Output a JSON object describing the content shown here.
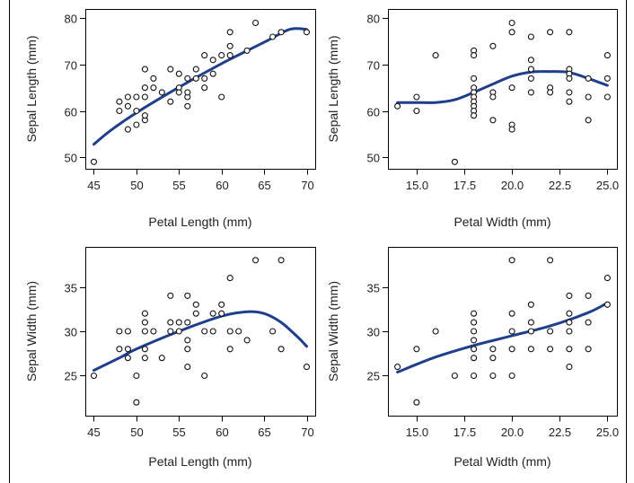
{
  "chart_data": [
    {
      "type": "scatter",
      "xlabel": "Petal Length (mm)",
      "ylabel": "Sepal Length (mm)",
      "xlim": [
        44,
        71
      ],
      "ylim": [
        47.5,
        82
      ],
      "xticks": [
        45,
        50,
        55,
        60,
        65,
        70
      ],
      "xtick_labels": [
        "45",
        "50",
        "55",
        "60",
        "65",
        "70"
      ],
      "yticks": [
        50,
        60,
        70,
        80
      ],
      "ytick_labels": [
        "50",
        "60",
        "70",
        "80"
      ],
      "grid": false,
      "fit_color": "#1f3f8a",
      "points": [
        {
          "x": 45,
          "y": 49
        },
        {
          "x": 48,
          "y": 62
        },
        {
          "x": 48,
          "y": 60
        },
        {
          "x": 49,
          "y": 63
        },
        {
          "x": 49,
          "y": 61
        },
        {
          "x": 49,
          "y": 56
        },
        {
          "x": 50,
          "y": 63
        },
        {
          "x": 50,
          "y": 60
        },
        {
          "x": 50,
          "y": 57
        },
        {
          "x": 51,
          "y": 58
        },
        {
          "x": 51,
          "y": 63
        },
        {
          "x": 51,
          "y": 65
        },
        {
          "x": 51,
          "y": 59
        },
        {
          "x": 51,
          "y": 69
        },
        {
          "x": 52,
          "y": 65
        },
        {
          "x": 52,
          "y": 67
        },
        {
          "x": 53,
          "y": 64
        },
        {
          "x": 54,
          "y": 69
        },
        {
          "x": 54,
          "y": 62
        },
        {
          "x": 55,
          "y": 65
        },
        {
          "x": 55,
          "y": 64
        },
        {
          "x": 55,
          "y": 68
        },
        {
          "x": 56,
          "y": 63
        },
        {
          "x": 56,
          "y": 64
        },
        {
          "x": 56,
          "y": 61
        },
        {
          "x": 56,
          "y": 67
        },
        {
          "x": 57,
          "y": 67
        },
        {
          "x": 57,
          "y": 69
        },
        {
          "x": 58,
          "y": 67
        },
        {
          "x": 58,
          "y": 65
        },
        {
          "x": 58,
          "y": 72
        },
        {
          "x": 59,
          "y": 68
        },
        {
          "x": 59,
          "y": 71
        },
        {
          "x": 60,
          "y": 63
        },
        {
          "x": 60,
          "y": 72
        },
        {
          "x": 61,
          "y": 72
        },
        {
          "x": 61,
          "y": 74
        },
        {
          "x": 61,
          "y": 77
        },
        {
          "x": 63,
          "y": 73
        },
        {
          "x": 64,
          "y": 79
        },
        {
          "x": 66,
          "y": 76
        },
        {
          "x": 67,
          "y": 77
        },
        {
          "x": 70,
          "y": 77
        }
      ],
      "fit": [
        {
          "x": 45,
          "y": 52.8
        },
        {
          "x": 47,
          "y": 55.8
        },
        {
          "x": 50,
          "y": 59.6
        },
        {
          "x": 55,
          "y": 65.1
        },
        {
          "x": 60,
          "y": 70.2
        },
        {
          "x": 65,
          "y": 74.8
        },
        {
          "x": 68,
          "y": 77.6
        },
        {
          "x": 70,
          "y": 77.6
        }
      ]
    },
    {
      "type": "scatter",
      "xlabel": "Petal Width (mm)",
      "ylabel": "Sepal Length (mm)",
      "xlim": [
        13.5,
        25.5
      ],
      "ylim": [
        47.5,
        82
      ],
      "xticks": [
        15,
        17.5,
        20,
        22.5,
        25
      ],
      "xtick_labels": [
        "15.0",
        "17.5",
        "20.0",
        "22.5",
        "25.0"
      ],
      "yticks": [
        50,
        60,
        70,
        80
      ],
      "ytick_labels": [
        "50",
        "60",
        "70",
        "80"
      ],
      "grid": false,
      "fit_color": "#1f3f8a",
      "points": [
        {
          "x": 14,
          "y": 61
        },
        {
          "x": 15,
          "y": 63
        },
        {
          "x": 15,
          "y": 60
        },
        {
          "x": 16,
          "y": 72
        },
        {
          "x": 17,
          "y": 49
        },
        {
          "x": 18,
          "y": 73
        },
        {
          "x": 18,
          "y": 72
        },
        {
          "x": 18,
          "y": 67
        },
        {
          "x": 18,
          "y": 65
        },
        {
          "x": 18,
          "y": 64
        },
        {
          "x": 18,
          "y": 63
        },
        {
          "x": 18,
          "y": 62
        },
        {
          "x": 18,
          "y": 61
        },
        {
          "x": 18,
          "y": 60
        },
        {
          "x": 18,
          "y": 59
        },
        {
          "x": 19,
          "y": 74
        },
        {
          "x": 19,
          "y": 64
        },
        {
          "x": 19,
          "y": 63
        },
        {
          "x": 19,
          "y": 58
        },
        {
          "x": 20,
          "y": 79
        },
        {
          "x": 20,
          "y": 77
        },
        {
          "x": 20,
          "y": 65
        },
        {
          "x": 20,
          "y": 57
        },
        {
          "x": 20,
          "y": 56
        },
        {
          "x": 21,
          "y": 76
        },
        {
          "x": 21,
          "y": 71
        },
        {
          "x": 21,
          "y": 69
        },
        {
          "x": 21,
          "y": 67
        },
        {
          "x": 21,
          "y": 64
        },
        {
          "x": 22,
          "y": 77
        },
        {
          "x": 22,
          "y": 65
        },
        {
          "x": 22,
          "y": 64
        },
        {
          "x": 23,
          "y": 77
        },
        {
          "x": 23,
          "y": 69
        },
        {
          "x": 23,
          "y": 68
        },
        {
          "x": 23,
          "y": 67
        },
        {
          "x": 23,
          "y": 64
        },
        {
          "x": 23,
          "y": 62
        },
        {
          "x": 24,
          "y": 67
        },
        {
          "x": 24,
          "y": 63
        },
        {
          "x": 24,
          "y": 58
        },
        {
          "x": 25,
          "y": 72
        },
        {
          "x": 25,
          "y": 67
        },
        {
          "x": 25,
          "y": 63
        }
      ],
      "fit": [
        {
          "x": 14,
          "y": 61.8
        },
        {
          "x": 15,
          "y": 61.8
        },
        {
          "x": 16,
          "y": 61.8
        },
        {
          "x": 17,
          "y": 62.4
        },
        {
          "x": 18,
          "y": 64.0
        },
        {
          "x": 19,
          "y": 65.8
        },
        {
          "x": 20,
          "y": 67.5
        },
        {
          "x": 21,
          "y": 68.4
        },
        {
          "x": 22,
          "y": 68.5
        },
        {
          "x": 23,
          "y": 68.3
        },
        {
          "x": 24,
          "y": 67.0
        },
        {
          "x": 25,
          "y": 65.5
        }
      ]
    },
    {
      "type": "scatter",
      "xlabel": "Petal Length (mm)",
      "ylabel": "Sepal Width (mm)",
      "xlim": [
        44,
        71
      ],
      "ylim": [
        20.5,
        39.5
      ],
      "xticks": [
        45,
        50,
        55,
        60,
        65,
        70
      ],
      "xtick_labels": [
        "45",
        "50",
        "55",
        "60",
        "65",
        "70"
      ],
      "yticks": [
        25,
        30,
        35
      ],
      "ytick_labels": [
        "25",
        "30",
        "35"
      ],
      "grid": false,
      "fit_color": "#1f3f8a",
      "points": [
        {
          "x": 45,
          "y": 25
        },
        {
          "x": 48,
          "y": 30
        },
        {
          "x": 48,
          "y": 28
        },
        {
          "x": 49,
          "y": 30
        },
        {
          "x": 49,
          "y": 28
        },
        {
          "x": 49,
          "y": 27
        },
        {
          "x": 50,
          "y": 25
        },
        {
          "x": 50,
          "y": 22
        },
        {
          "x": 51,
          "y": 32
        },
        {
          "x": 51,
          "y": 31
        },
        {
          "x": 51,
          "y": 30
        },
        {
          "x": 51,
          "y": 28
        },
        {
          "x": 51,
          "y": 27
        },
        {
          "x": 52,
          "y": 30
        },
        {
          "x": 53,
          "y": 27
        },
        {
          "x": 54,
          "y": 34
        },
        {
          "x": 54,
          "y": 31
        },
        {
          "x": 54,
          "y": 30
        },
        {
          "x": 55,
          "y": 31
        },
        {
          "x": 55,
          "y": 30
        },
        {
          "x": 56,
          "y": 34
        },
        {
          "x": 56,
          "y": 31
        },
        {
          "x": 56,
          "y": 29
        },
        {
          "x": 56,
          "y": 28
        },
        {
          "x": 56,
          "y": 26
        },
        {
          "x": 57,
          "y": 33
        },
        {
          "x": 57,
          "y": 32
        },
        {
          "x": 58,
          "y": 30
        },
        {
          "x": 58,
          "y": 25
        },
        {
          "x": 59,
          "y": 32
        },
        {
          "x": 59,
          "y": 30
        },
        {
          "x": 60,
          "y": 33
        },
        {
          "x": 60,
          "y": 32
        },
        {
          "x": 61,
          "y": 36
        },
        {
          "x": 61,
          "y": 30
        },
        {
          "x": 61,
          "y": 28
        },
        {
          "x": 62,
          "y": 30
        },
        {
          "x": 63,
          "y": 29
        },
        {
          "x": 64,
          "y": 38
        },
        {
          "x": 66,
          "y": 30
        },
        {
          "x": 67,
          "y": 38
        },
        {
          "x": 67,
          "y": 28
        },
        {
          "x": 70,
          "y": 26
        }
      ],
      "fit": [
        {
          "x": 45,
          "y": 25.6
        },
        {
          "x": 48,
          "y": 27.0
        },
        {
          "x": 50,
          "y": 28.0
        },
        {
          "x": 55,
          "y": 30.0
        },
        {
          "x": 60,
          "y": 31.7
        },
        {
          "x": 63,
          "y": 32.2
        },
        {
          "x": 65,
          "y": 32.0
        },
        {
          "x": 67,
          "y": 31.0
        },
        {
          "x": 69,
          "y": 29.3
        },
        {
          "x": 70,
          "y": 28.3
        }
      ]
    },
    {
      "type": "scatter",
      "xlabel": "Petal Width (mm)",
      "ylabel": "Sepal Width (mm)",
      "xlim": [
        13.5,
        25.5
      ],
      "ylim": [
        20.5,
        39.5
      ],
      "xticks": [
        15,
        17.5,
        20,
        22.5,
        25
      ],
      "xtick_labels": [
        "15.0",
        "17.5",
        "20.0",
        "22.5",
        "25.0"
      ],
      "yticks": [
        25,
        30,
        35
      ],
      "ytick_labels": [
        "25",
        "30",
        "35"
      ],
      "grid": false,
      "fit_color": "#1f3f8a",
      "points": [
        {
          "x": 14,
          "y": 26
        },
        {
          "x": 15,
          "y": 28
        },
        {
          "x": 15,
          "y": 22
        },
        {
          "x": 16,
          "y": 30
        },
        {
          "x": 17,
          "y": 25
        },
        {
          "x": 18,
          "y": 32
        },
        {
          "x": 18,
          "y": 31
        },
        {
          "x": 18,
          "y": 30
        },
        {
          "x": 18,
          "y": 29
        },
        {
          "x": 18,
          "y": 28
        },
        {
          "x": 18,
          "y": 27
        },
        {
          "x": 18,
          "y": 25
        },
        {
          "x": 19,
          "y": 28
        },
        {
          "x": 19,
          "y": 27
        },
        {
          "x": 19,
          "y": 25
        },
        {
          "x": 20,
          "y": 38
        },
        {
          "x": 20,
          "y": 32
        },
        {
          "x": 20,
          "y": 30
        },
        {
          "x": 20,
          "y": 28
        },
        {
          "x": 20,
          "y": 25
        },
        {
          "x": 21,
          "y": 33
        },
        {
          "x": 21,
          "y": 31
        },
        {
          "x": 21,
          "y": 30
        },
        {
          "x": 21,
          "y": 28
        },
        {
          "x": 22,
          "y": 38
        },
        {
          "x": 22,
          "y": 30
        },
        {
          "x": 22,
          "y": 28
        },
        {
          "x": 23,
          "y": 34
        },
        {
          "x": 23,
          "y": 32
        },
        {
          "x": 23,
          "y": 31
        },
        {
          "x": 23,
          "y": 30
        },
        {
          "x": 23,
          "y": 28
        },
        {
          "x": 23,
          "y": 26
        },
        {
          "x": 24,
          "y": 34
        },
        {
          "x": 24,
          "y": 31
        },
        {
          "x": 24,
          "y": 28
        },
        {
          "x": 25,
          "y": 36
        },
        {
          "x": 25,
          "y": 33
        }
      ],
      "fit": [
        {
          "x": 14,
          "y": 25.4
        },
        {
          "x": 16,
          "y": 27.1
        },
        {
          "x": 18,
          "y": 28.4
        },
        {
          "x": 20,
          "y": 29.5
        },
        {
          "x": 22,
          "y": 30.6
        },
        {
          "x": 24,
          "y": 32.1
        },
        {
          "x": 25,
          "y": 33.2
        }
      ]
    }
  ]
}
